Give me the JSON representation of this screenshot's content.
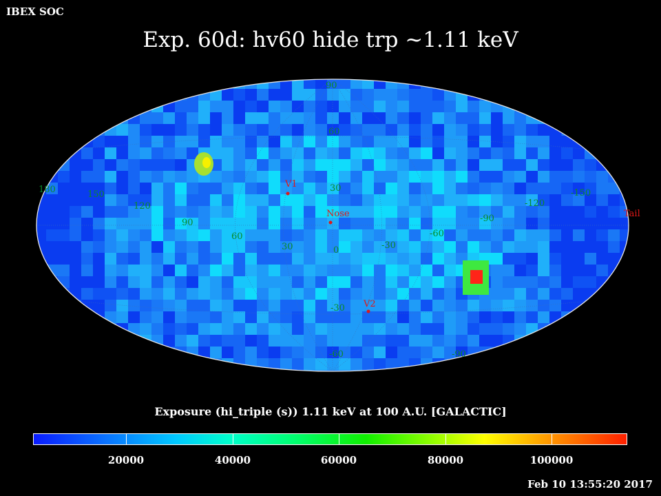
{
  "header": {
    "org": "IBEX SOC",
    "title": "Exp.   60d: hv60 hide trp ~1.11 keV"
  },
  "colorbar": {
    "title": "Exposure (hi_triple (s))  1.11 keV at 100 A.U. [GALACTIC]",
    "tick_labels": [
      "20000",
      "40000",
      "60000",
      "80000",
      "100000"
    ]
  },
  "timestamp": "Feb 10 13:55:20 2017",
  "map": {
    "projection": "aitoff",
    "coordinates": "galactic",
    "longitude_labels": [
      "180",
      "150",
      "120",
      "90",
      "60",
      "30",
      "0",
      "-30",
      "-60",
      "-90",
      "-120",
      "-150"
    ],
    "latitude_labels": [
      "90",
      "60",
      "30",
      "-30",
      "-60",
      "-90"
    ],
    "markers": [
      "V1",
      "Nose",
      "V2",
      "Tail"
    ],
    "colors": {
      "background": "#000000",
      "grid_label": "#0a8a2a",
      "marker": "#e01818"
    }
  }
}
